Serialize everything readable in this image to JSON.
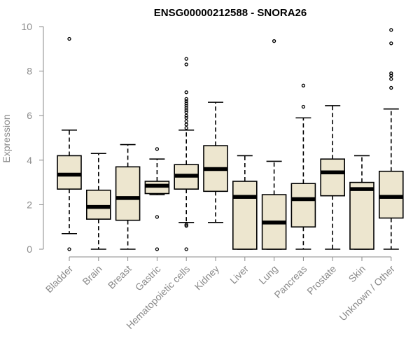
{
  "chart_data": {
    "type": "boxplot",
    "title": "ENSG00000212588 - SNORA26",
    "xlabel": "",
    "ylabel": "Expression",
    "ylim": [
      0,
      10
    ],
    "yticks": [
      "0",
      "2",
      "4",
      "6",
      "8",
      "10"
    ],
    "colors": {
      "box_fill": "#ede6cf",
      "box_stroke": "#000000",
      "axis": "#8a8a8a"
    },
    "categories": [
      "Bladder",
      "Brain",
      "Breast",
      "Gastric",
      "Hematopoietic cells",
      "Kidney",
      "Liver",
      "Lung",
      "Pancreas",
      "Prostate",
      "Skin",
      "Unknown / Other"
    ],
    "boxes": [
      {
        "category": "Bladder",
        "whisker_low": 0.7,
        "q1": 2.7,
        "median": 3.35,
        "q3": 4.2,
        "whisker_high": 5.35,
        "outliers": [
          0.0,
          9.45
        ]
      },
      {
        "category": "Brain",
        "whisker_low": 0.0,
        "q1": 1.35,
        "median": 1.9,
        "q3": 2.65,
        "whisker_high": 4.3,
        "outliers": []
      },
      {
        "category": "Breast",
        "whisker_low": 0.0,
        "q1": 1.3,
        "median": 2.3,
        "q3": 3.7,
        "whisker_high": 4.7,
        "outliers": []
      },
      {
        "category": "Gastric",
        "whisker_low": 2.45,
        "q1": 2.5,
        "median": 2.85,
        "q3": 3.05,
        "whisker_high": 4.05,
        "outliers": [
          0.0,
          1.45,
          4.5
        ]
      },
      {
        "category": "Hematopoietic cells",
        "whisker_low": 1.2,
        "q1": 2.7,
        "median": 3.3,
        "q3": 3.8,
        "whisker_high": 5.35,
        "outliers": [
          0.0,
          1.05,
          1.1,
          5.45,
          5.6,
          5.75,
          5.9,
          6.0,
          6.15,
          6.25,
          6.35,
          6.45,
          6.55,
          6.65,
          6.75,
          7.05,
          8.3,
          8.55
        ]
      },
      {
        "category": "Kidney",
        "whisker_low": 1.2,
        "q1": 2.6,
        "median": 3.6,
        "q3": 4.65,
        "whisker_high": 6.6,
        "outliers": []
      },
      {
        "category": "Liver",
        "whisker_low": 0.0,
        "q1": 0.0,
        "median": 2.35,
        "q3": 3.05,
        "whisker_high": 4.2,
        "outliers": []
      },
      {
        "category": "Lung",
        "whisker_low": 0.0,
        "q1": 0.0,
        "median": 1.2,
        "q3": 2.45,
        "whisker_high": 3.95,
        "outliers": [
          9.35
        ]
      },
      {
        "category": "Pancreas",
        "whisker_low": 0.0,
        "q1": 1.0,
        "median": 2.25,
        "q3": 2.95,
        "whisker_high": 5.9,
        "outliers": [
          6.4,
          7.35
        ]
      },
      {
        "category": "Prostate",
        "whisker_low": 0.0,
        "q1": 2.4,
        "median": 3.45,
        "q3": 4.05,
        "whisker_high": 6.45,
        "outliers": []
      },
      {
        "category": "Skin",
        "whisker_low": 0.0,
        "q1": 0.0,
        "median": 2.7,
        "q3": 3.0,
        "whisker_high": 4.2,
        "outliers": []
      },
      {
        "category": "Unknown / Other",
        "whisker_low": 0.0,
        "q1": 1.4,
        "median": 2.35,
        "q3": 3.5,
        "whisker_high": 6.3,
        "outliers": [
          7.25,
          7.65,
          7.8,
          7.9,
          9.25,
          9.85
        ]
      }
    ]
  }
}
